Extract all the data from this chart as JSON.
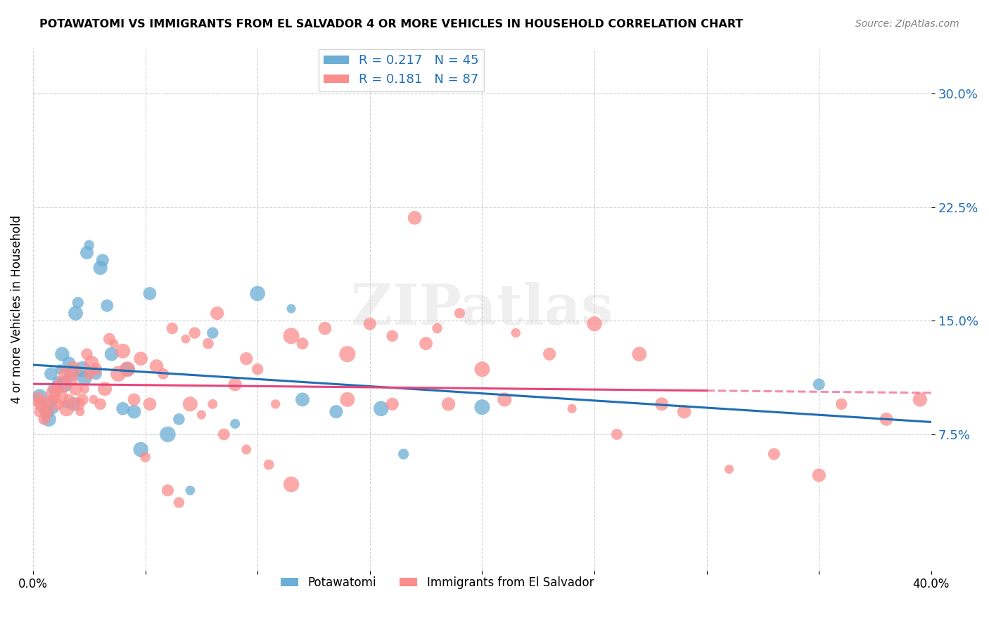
{
  "title": "POTAWATOMI VS IMMIGRANTS FROM EL SALVADOR 4 OR MORE VEHICLES IN HOUSEHOLD CORRELATION CHART",
  "source": "Source: ZipAtlas.com",
  "ylabel": "4 or more Vehicles in Household",
  "y_ticks_right": [
    0.075,
    0.15,
    0.225,
    0.3
  ],
  "y_tick_labels_right": [
    "7.5%",
    "15.0%",
    "22.5%",
    "30.0%"
  ],
  "xlim": [
    0.0,
    0.4
  ],
  "ylim": [
    -0.015,
    0.33
  ],
  "series1_color": "#6baed6",
  "series2_color": "#fc8d8d",
  "line1_color": "#1f6eb5",
  "line2_color": "#e8457a",
  "R1": 0.217,
  "N1": 45,
  "R2": 0.181,
  "N2": 87,
  "series1_label": "Potawatomi",
  "series2_label": "Immigrants from El Salvador",
  "watermark": "ZIPatlas",
  "background_color": "#ffffff",
  "grid_color": "#cccccc",
  "series1_x": [
    0.003,
    0.005,
    0.006,
    0.007,
    0.008,
    0.009,
    0.009,
    0.01,
    0.011,
    0.012,
    0.013,
    0.014,
    0.015,
    0.016,
    0.017,
    0.018,
    0.019,
    0.02,
    0.022,
    0.023,
    0.024,
    0.025,
    0.028,
    0.03,
    0.031,
    0.033,
    0.035,
    0.04,
    0.042,
    0.045,
    0.048,
    0.052,
    0.06,
    0.065,
    0.07,
    0.08,
    0.09,
    0.1,
    0.115,
    0.12,
    0.135,
    0.155,
    0.165,
    0.2,
    0.35
  ],
  "series1_y": [
    0.1,
    0.095,
    0.09,
    0.085,
    0.115,
    0.092,
    0.098,
    0.105,
    0.11,
    0.118,
    0.128,
    0.108,
    0.095,
    0.122,
    0.115,
    0.095,
    0.155,
    0.162,
    0.118,
    0.112,
    0.195,
    0.2,
    0.115,
    0.185,
    0.19,
    0.16,
    0.128,
    0.092,
    0.118,
    0.09,
    0.065,
    0.168,
    0.075,
    0.085,
    0.038,
    0.142,
    0.082,
    0.168,
    0.158,
    0.098,
    0.09,
    0.092,
    0.062,
    0.093,
    0.108
  ],
  "series2_x": [
    0.002,
    0.003,
    0.004,
    0.005,
    0.006,
    0.007,
    0.008,
    0.009,
    0.01,
    0.011,
    0.012,
    0.013,
    0.014,
    0.015,
    0.016,
    0.017,
    0.018,
    0.019,
    0.02,
    0.021,
    0.022,
    0.023,
    0.024,
    0.025,
    0.026,
    0.027,
    0.028,
    0.03,
    0.032,
    0.034,
    0.036,
    0.038,
    0.04,
    0.042,
    0.045,
    0.048,
    0.052,
    0.055,
    0.058,
    0.062,
    0.068,
    0.072,
    0.078,
    0.082,
    0.09,
    0.095,
    0.1,
    0.108,
    0.115,
    0.12,
    0.13,
    0.14,
    0.15,
    0.16,
    0.175,
    0.185,
    0.2,
    0.215,
    0.23,
    0.25,
    0.27,
    0.29,
    0.31,
    0.33,
    0.35,
    0.36,
    0.38,
    0.395,
    0.05,
    0.075,
    0.085,
    0.095,
    0.105,
    0.115,
    0.06,
    0.065,
    0.07,
    0.08,
    0.14,
    0.16,
    0.17,
    0.18,
    0.19,
    0.21,
    0.24,
    0.26,
    0.28
  ],
  "series2_y": [
    0.098,
    0.09,
    0.095,
    0.085,
    0.088,
    0.092,
    0.098,
    0.102,
    0.105,
    0.095,
    0.1,
    0.108,
    0.115,
    0.092,
    0.098,
    0.112,
    0.118,
    0.105,
    0.095,
    0.09,
    0.098,
    0.105,
    0.128,
    0.115,
    0.122,
    0.098,
    0.118,
    0.095,
    0.105,
    0.138,
    0.135,
    0.115,
    0.13,
    0.118,
    0.098,
    0.125,
    0.095,
    0.12,
    0.115,
    0.145,
    0.138,
    0.142,
    0.135,
    0.155,
    0.108,
    0.125,
    0.118,
    0.095,
    0.14,
    0.135,
    0.145,
    0.128,
    0.148,
    0.14,
    0.135,
    0.095,
    0.118,
    0.142,
    0.128,
    0.148,
    0.128,
    0.09,
    0.052,
    0.062,
    0.048,
    0.095,
    0.085,
    0.098,
    0.06,
    0.088,
    0.075,
    0.065,
    0.055,
    0.042,
    0.038,
    0.03,
    0.095,
    0.095,
    0.098,
    0.095,
    0.218,
    0.145,
    0.155,
    0.098,
    0.092,
    0.075,
    0.095
  ]
}
